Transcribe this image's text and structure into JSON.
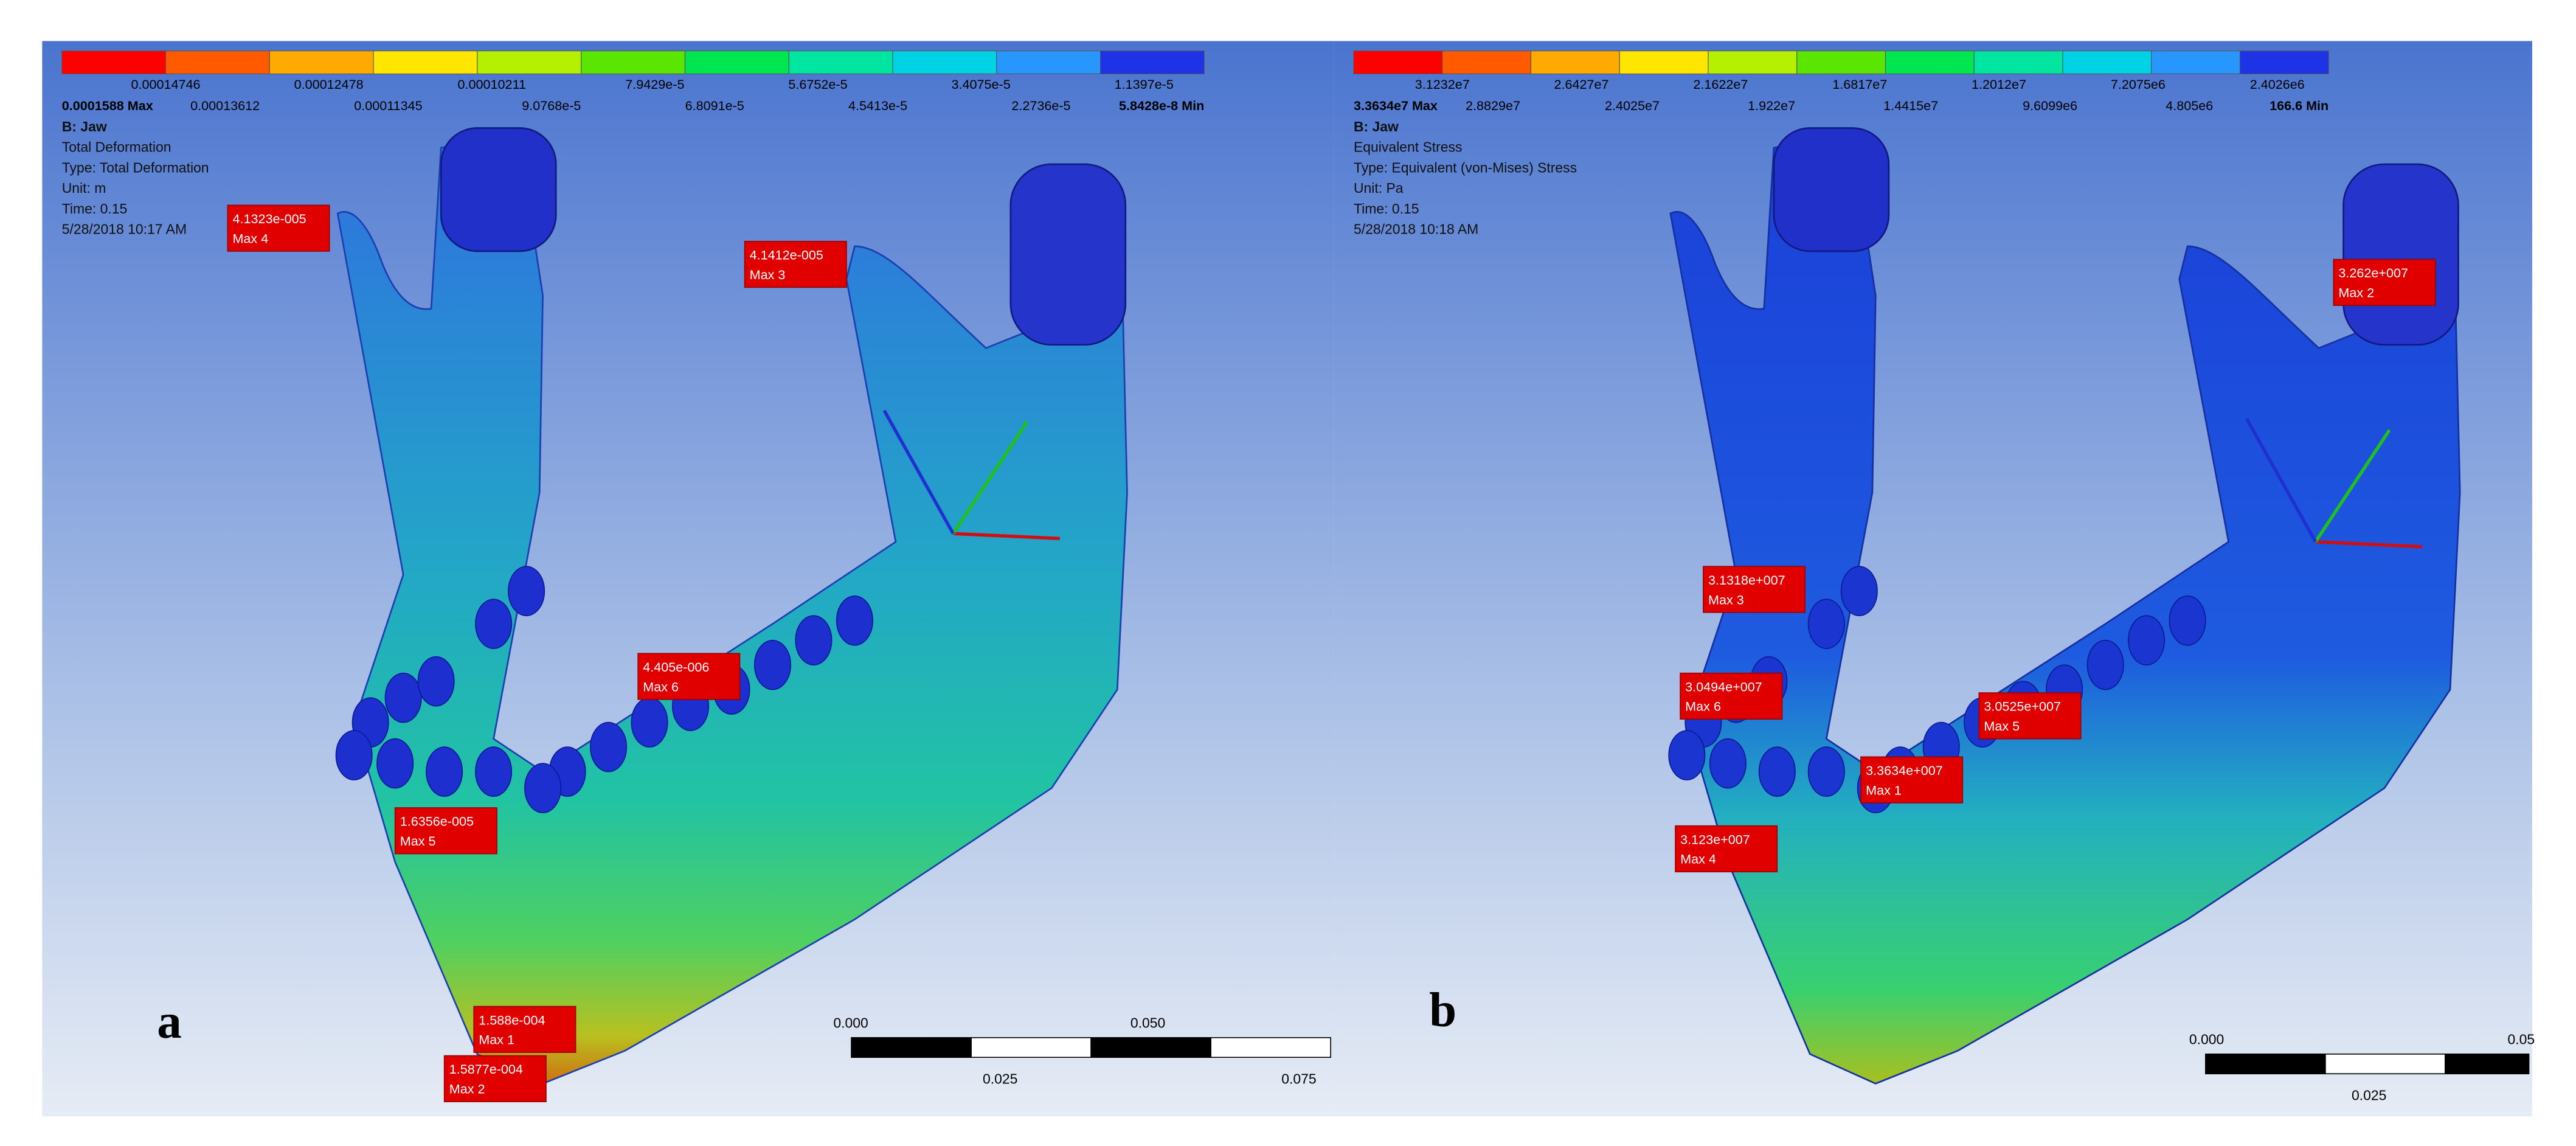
{
  "panels": [
    {
      "label": "a",
      "legend_top": [
        "0.00014746",
        "0.00012478",
        "0.00010211",
        "7.9429e-5",
        "5.6752e-5",
        "3.4075e-5",
        "1.1397e-5"
      ],
      "legend_bottom": [
        "0.0001588 Max",
        "0.00013612",
        "0.00011345",
        "9.0768e-5",
        "6.8091e-5",
        "4.5413e-5",
        "2.2736e-5",
        "5.8428e-8 Min"
      ],
      "info": [
        "B: Jaw",
        "Total Deformation",
        "Type: Total Deformation",
        "Unit: m",
        "Time: 0.15",
        "5/28/2018 10:17 AM"
      ],
      "probes": [
        {
          "value": "4.1323e-005",
          "name": "Max 4"
        },
        {
          "value": "4.1412e-005",
          "name": "Max 3"
        },
        {
          "value": "4.405e-006",
          "name": "Max 6"
        },
        {
          "value": "1.6356e-005",
          "name": "Max 5"
        },
        {
          "value": "1.588e-004",
          "name": "Max 1"
        },
        {
          "value": "1.5877e-004",
          "name": "Max 2"
        }
      ],
      "scale_top": [
        "0.000",
        "0.050"
      ],
      "scale_bottom": [
        "0.025",
        "0.075"
      ]
    },
    {
      "label": "b",
      "legend_top": [
        "3.1232e7",
        "2.6427e7",
        "2.1622e7",
        "1.6817e7",
        "1.2012e7",
        "7.2075e6",
        "2.4026e6"
      ],
      "legend_bottom": [
        "3.3634e7 Max",
        "2.8829e7",
        "2.4025e7",
        "1.922e7",
        "1.4415e7",
        "9.6099e6",
        "4.805e6",
        "166.6 Min"
      ],
      "info": [
        "B: Jaw",
        "Equivalent Stress",
        "Type: Equivalent (von-Mises) Stress",
        "Unit: Pa",
        "Time: 0.15",
        "5/28/2018 10:18 AM"
      ],
      "probes": [
        {
          "value": "3.262e+007",
          "name": "Max 2"
        },
        {
          "value": "3.1318e+007",
          "name": "Max 3"
        },
        {
          "value": "3.0494e+007",
          "name": "Max 6"
        },
        {
          "value": "3.0525e+007",
          "name": "Max 5"
        },
        {
          "value": "3.3634e+007",
          "name": "Max 1"
        },
        {
          "value": "3.123e+007",
          "name": "Max 4"
        }
      ],
      "scale_top": [
        "0.000",
        "0.05"
      ],
      "scale_bottom": [
        "0.025"
      ]
    }
  ]
}
